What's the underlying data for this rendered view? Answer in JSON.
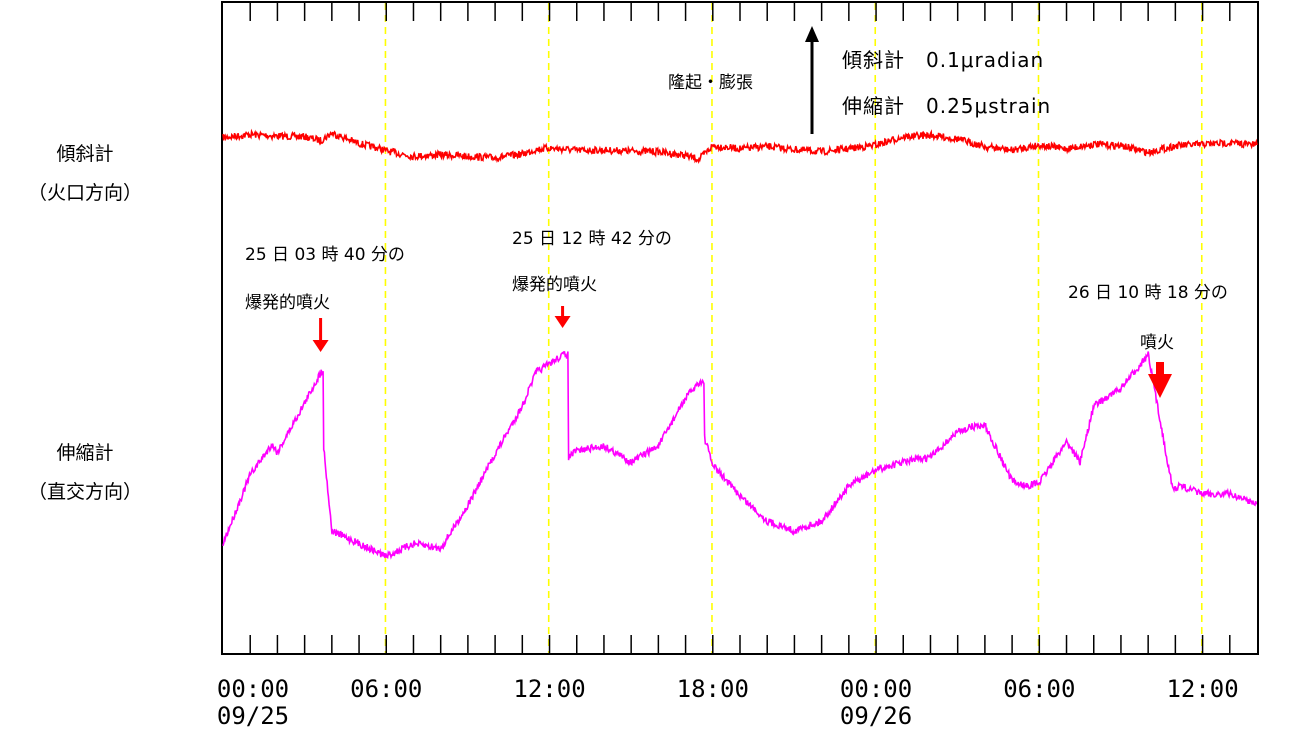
{
  "chart_data": {
    "type": "line",
    "x_tick_labels": [
      {
        "time": "00:00",
        "date": "09/25"
      },
      {
        "time": "06:00",
        "date": ""
      },
      {
        "time": "12:00",
        "date": ""
      },
      {
        "time": "18:00",
        "date": ""
      },
      {
        "time": "00:00",
        "date": "09/26"
      },
      {
        "time": "06:00",
        "date": ""
      },
      {
        "time": "12:00",
        "date": ""
      }
    ],
    "x_range_hours": [
      0,
      38
    ],
    "grid": "vertical dashed yellow lines",
    "series": [
      {
        "name": "傾斜計",
        "sub": "（火口方向）",
        "color": "#ff0000",
        "x": [
          0,
          1,
          2,
          3,
          3.6,
          4,
          5,
          5.8,
          6,
          7,
          8,
          9,
          10,
          11,
          11.5,
          12,
          13,
          14,
          16,
          17,
          17.5,
          18,
          19,
          20,
          21,
          22,
          23,
          24,
          25,
          26,
          27,
          28,
          29,
          30,
          31,
          32,
          33,
          34,
          35,
          36,
          37,
          38
        ],
        "y": [
          70,
          74,
          72,
          71,
          66,
          76,
          62,
          55,
          52,
          45,
          47,
          45,
          43,
          48,
          54,
          56,
          53,
          53,
          51,
          46,
          41,
          59,
          55,
          58,
          54,
          51,
          55,
          60,
          71,
          73,
          68,
          58,
          53,
          60,
          55,
          61,
          59,
          50,
          59,
          61,
          63,
          60
        ]
      },
      {
        "name": "伸縮計",
        "sub": "（直交方向）",
        "color": "#ff00ff",
        "x": [
          0,
          1,
          1.8,
          2,
          3,
          3.66,
          3.7,
          4,
          5,
          6,
          7,
          8,
          9,
          10,
          11,
          11.5,
          12.5,
          12.7,
          13,
          14,
          15,
          16,
          17,
          17.5,
          17.7,
          18,
          19,
          20,
          21,
          22,
          23,
          24,
          25,
          26,
          27,
          27.5,
          28,
          29,
          29.5,
          30,
          31,
          31.5,
          32,
          33,
          34,
          34.9,
          35.2,
          36,
          37,
          38
        ],
        "y": [
          -46,
          -3,
          16,
          11,
          42,
          63,
          14,
          -38,
          -46,
          -54,
          -46,
          -49,
          -22,
          10,
          40,
          61,
          72,
          8,
          12,
          15,
          5,
          15,
          45,
          55,
          20,
          3,
          -16,
          -32,
          -38,
          -32,
          -10,
          0,
          5,
          8,
          24,
          27,
          28,
          -7,
          -10,
          -8,
          18,
          5,
          40,
          51,
          72,
          -12,
          -10,
          -15,
          -15,
          -21
        ]
      }
    ],
    "annotations": [
      {
        "line1": "25 日 03 時 40 分の",
        "line2": "爆発的噴火",
        "x_hour": 3.66
      },
      {
        "line1": "25 日 12 時 42 分の",
        "line2": "爆発的噴火",
        "x_hour": 12.7
      },
      {
        "line1": "26 日 10 時 18 分の",
        "line2": "噴火",
        "x_hour": 34.3
      }
    ],
    "legend": {
      "direction": "隆起・膨張",
      "lines": [
        "傾斜計　0.1μradian",
        "伸縮計　0.25μstrain"
      ]
    }
  }
}
